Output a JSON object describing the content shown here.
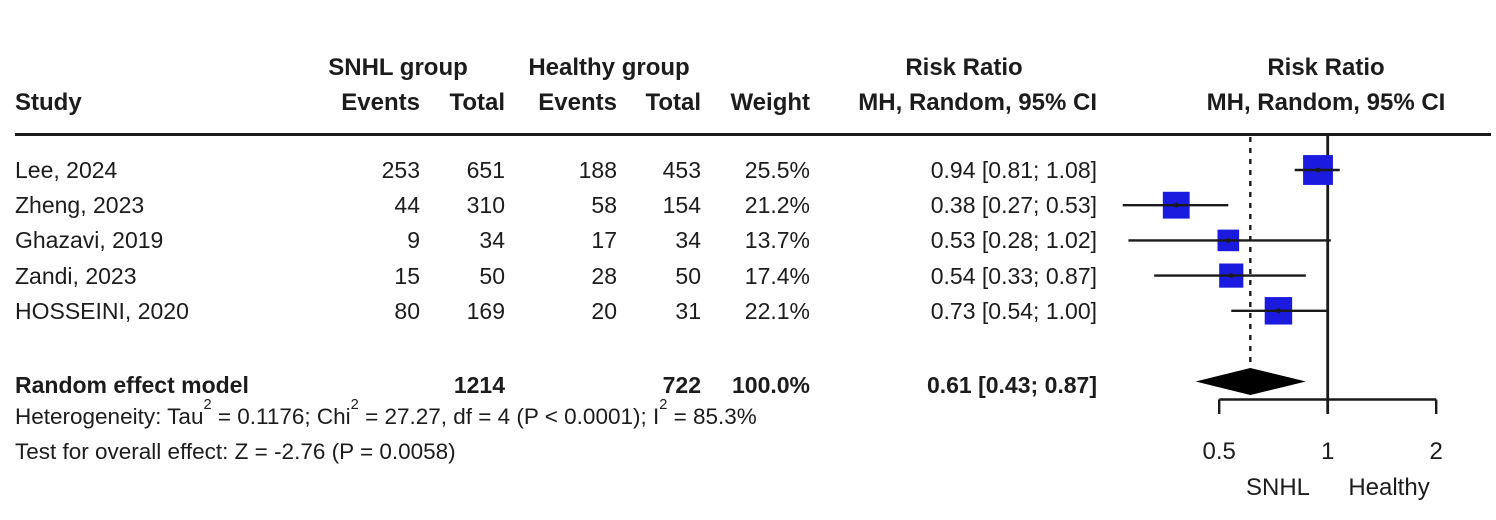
{
  "header": {
    "group_snhl": "SNHL group",
    "group_healthy": "Healthy group",
    "risk_ratio_1": "Risk Ratio",
    "risk_ratio_2": "Risk Ratio",
    "study": "Study",
    "events_1": "Events",
    "total_1": "Total",
    "events_2": "Events",
    "total_2": "Total",
    "weight": "Weight",
    "mh_1": "MH, Random, 95% CI",
    "mh_2": "MH, Random, 95% CI"
  },
  "table": {
    "rows": [
      {
        "study": "Lee, 2024",
        "e1": "253",
        "t1": "651",
        "e2": "188",
        "t2": "453",
        "weight": "25.5%",
        "rr_text": "0.94 [0.81; 1.08]"
      },
      {
        "study": "Zheng, 2023",
        "e1": "44",
        "t1": "310",
        "e2": "58",
        "t2": "154",
        "weight": "21.2%",
        "rr_text": "0.38 [0.27; 0.53]"
      },
      {
        "study": "Ghazavi, 2019",
        "e1": "9",
        "t1": "34",
        "e2": "17",
        "t2": "34",
        "weight": "13.7%",
        "rr_text": "0.53 [0.28; 1.02]"
      },
      {
        "study": "Zandi, 2023",
        "e1": "15",
        "t1": "50",
        "e2": "28",
        "t2": "50",
        "weight": "17.4%",
        "rr_text": "0.54 [0.33; 0.87]"
      },
      {
        "study": "HOSSEINI, 2020",
        "e1": "80",
        "t1": "169",
        "e2": "20",
        "t2": "31",
        "weight": "22.1%",
        "rr_text": "0.73 [0.54; 1.00]"
      }
    ],
    "pooled": {
      "label": "Random effect model",
      "t1": "1214",
      "t2": "722",
      "weight": "100.0%",
      "rr_text": "0.61 [0.43; 0.87]"
    }
  },
  "footnotes": {
    "heterogeneity_segments": [
      {
        "t": "Heterogeneity: Tau"
      },
      {
        "t": "2",
        "sup": true
      },
      {
        "t": " = 0.1176; Chi"
      },
      {
        "t": "2",
        "sup": true
      },
      {
        "t": " = 27.27, df = 4 (P < 0.0001); I"
      },
      {
        "t": "2",
        "sup": true
      },
      {
        "t": " = 85.3%"
      }
    ],
    "overall_effect": "Test for overall effect: Z = -2.76 (P = 0.0058)"
  },
  "chart_data": {
    "type": "forest",
    "x_scale": "log",
    "x_ticks": [
      {
        "value": 0.5,
        "label": "0.5"
      },
      {
        "value": 1,
        "label": "1"
      },
      {
        "value": 2,
        "label": "2"
      }
    ],
    "x_range": [
      0.5,
      2
    ],
    "reference_line": 1,
    "pooled_dashed_line": 0.61,
    "axis_left_label": "SNHL",
    "axis_right_label": "Healthy",
    "series": [
      {
        "study": "Lee, 2024",
        "rr": 0.94,
        "lo": 0.81,
        "hi": 1.08,
        "weight_pct": 25.5
      },
      {
        "study": "Zheng, 2023",
        "rr": 0.38,
        "lo": 0.27,
        "hi": 0.53,
        "weight_pct": 21.2
      },
      {
        "study": "Ghazavi, 2019",
        "rr": 0.53,
        "lo": 0.28,
        "hi": 1.02,
        "weight_pct": 13.7
      },
      {
        "study": "Zandi, 2023",
        "rr": 0.54,
        "lo": 0.33,
        "hi": 0.87,
        "weight_pct": 17.4
      },
      {
        "study": "HOSSEINI, 2020",
        "rr": 0.73,
        "lo": 0.54,
        "hi": 1.0,
        "weight_pct": 22.1
      }
    ],
    "pooled": {
      "rr": 0.61,
      "lo": 0.43,
      "hi": 0.87,
      "weight_pct": 100.0
    },
    "colors": {
      "square": "#1b1bdf",
      "line": "#1a1a1a",
      "diamond": "#000000",
      "text": "#1c1c1c"
    }
  }
}
